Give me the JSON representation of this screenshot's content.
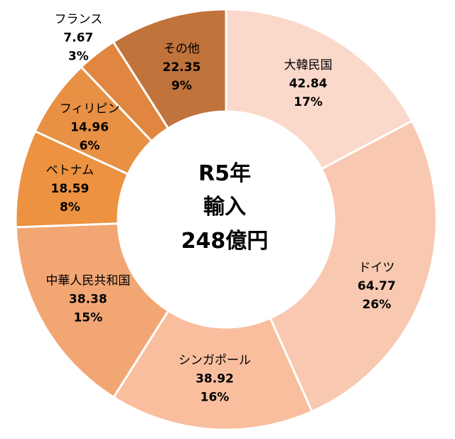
{
  "chart_data": {
    "type": "pie",
    "variant": "donut",
    "center_label": [
      "R5年",
      "輸入",
      "248億円"
    ],
    "slices": [
      {
        "label": "大韓民国",
        "value": 42.84,
        "value_label": "42.84",
        "percent_label": "17%",
        "color": "#FAD8CA"
      },
      {
        "label": "ドイツ",
        "value": 64.77,
        "value_label": "64.77",
        "percent_label": "26%",
        "color": "#F8C8B0"
      },
      {
        "label": "シンガポール",
        "value": 38.92,
        "value_label": "38.92",
        "percent_label": "16%",
        "color": "#F8BE9E"
      },
      {
        "label": "中華人民共和国",
        "value": 38.38,
        "value_label": "38.38",
        "percent_label": "15%",
        "color": "#F2A674"
      },
      {
        "label": "ベトナム",
        "value": 18.59,
        "value_label": "18.59",
        "percent_label": "8%",
        "color": "#EC9240"
      },
      {
        "label": "フィリピン",
        "value": 14.96,
        "value_label": "14.96",
        "percent_label": "6%",
        "color": "#E89044"
      },
      {
        "label": "フランス",
        "value": 7.67,
        "value_label": "7.67",
        "percent_label": "3%",
        "color": "#E08640"
      },
      {
        "label": "その他",
        "value": 22.35,
        "value_label": "22.35",
        "percent_label": "9%",
        "color": "#C0733A"
      }
    ]
  }
}
